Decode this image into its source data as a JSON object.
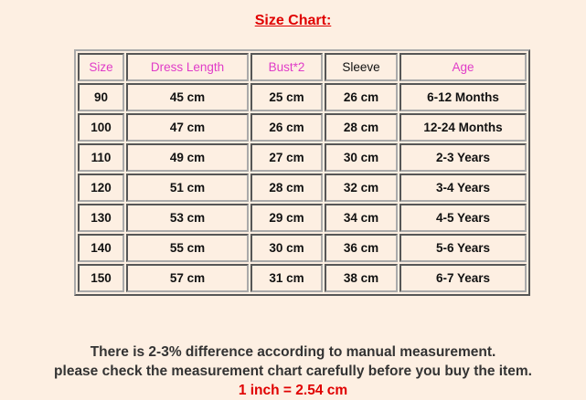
{
  "header": {
    "title": "Size Chart:"
  },
  "table": {
    "headers": [
      "Size",
      "Dress Length",
      "Bust*2",
      "Sleeve",
      "Age"
    ],
    "rows": [
      [
        "90",
        "45 cm",
        "25 cm",
        "26 cm",
        "6-12 Months"
      ],
      [
        "100",
        "47 cm",
        "26 cm",
        "28 cm",
        "12-24 Months"
      ],
      [
        "110",
        "49 cm",
        "27 cm",
        "30 cm",
        "2-3 Years"
      ],
      [
        "120",
        "51 cm",
        "28 cm",
        "32 cm",
        "3-4 Years"
      ],
      [
        "130",
        "53 cm",
        "29 cm",
        "34 cm",
        "4-5 Years"
      ],
      [
        "140",
        "55 cm",
        "30 cm",
        "36 cm",
        "5-6 Years"
      ],
      [
        "150",
        "57 cm",
        "31 cm",
        "38 cm",
        "6-7 Years"
      ]
    ]
  },
  "footer": {
    "lines": [
      "There is 2-3% difference according to manual measurement.",
      "please check the measurement chart carefully before you buy the item.",
      "1 inch = 2.54 cm"
    ]
  }
}
